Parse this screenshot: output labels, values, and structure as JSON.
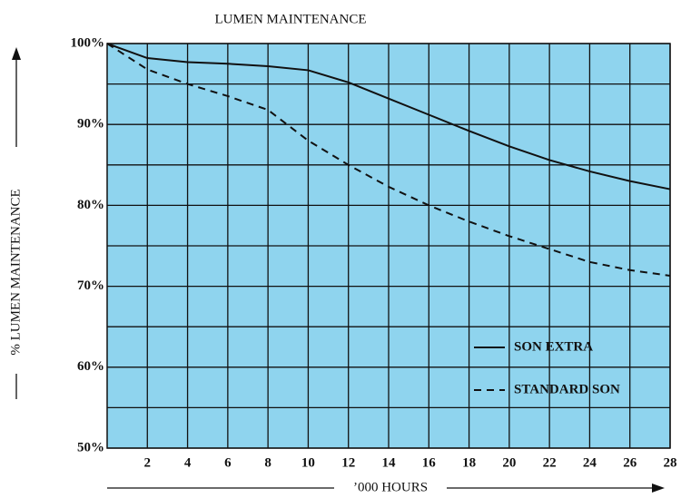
{
  "chart_data": {
    "type": "line",
    "title": "LUMEN MAINTENANCE",
    "x_label": "’000 HOURS",
    "y_label": "% LUMEN MAINTENANCE",
    "x": [
      0,
      2,
      4,
      6,
      8,
      10,
      12,
      14,
      16,
      18,
      20,
      22,
      24,
      26,
      28
    ],
    "series": [
      {
        "name": "SON EXTRA",
        "color": "#111111",
        "linestyle": "solid",
        "values": [
          100,
          98.2,
          97.7,
          97.5,
          97.2,
          96.7,
          95.2,
          93.2,
          91.2,
          89.2,
          87.3,
          85.6,
          84.2,
          83,
          82
        ]
      },
      {
        "name": "STANDARD SON",
        "color": "#111111",
        "linestyle": "dashed",
        "values": [
          100,
          96.8,
          95,
          93.5,
          91.8,
          88,
          85,
          82.3,
          80,
          78,
          76.2,
          74.6,
          73,
          72,
          71.3
        ]
      }
    ],
    "xlim": [
      0,
      28
    ],
    "xticks": [
      2,
      4,
      6,
      8,
      10,
      12,
      14,
      16,
      18,
      20,
      22,
      24,
      26,
      28
    ],
    "ylim": [
      50,
      100
    ],
    "yticks": [
      {
        "value": 50,
        "label": "50%"
      },
      {
        "value": 60,
        "label": "60%"
      },
      {
        "value": 70,
        "label": "70%"
      },
      {
        "value": 80,
        "label": "80%"
      },
      {
        "value": 90,
        "label": "90%"
      },
      {
        "value": 100,
        "label": "100%"
      }
    ],
    "minor_yticks": [
      55,
      65,
      75,
      85,
      95
    ],
    "grid": true,
    "background": "#8fd4ee",
    "legend": "lower right"
  }
}
